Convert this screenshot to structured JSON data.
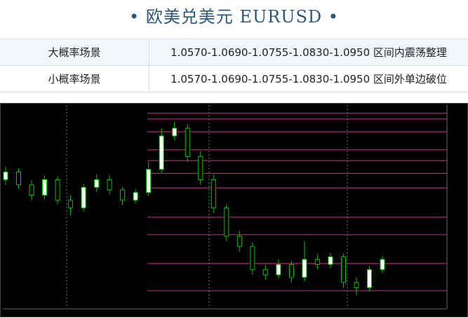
{
  "header": {
    "title": "• 欧美兑美元 EURUSD •"
  },
  "table": {
    "rows": [
      [
        "大概率场景",
        "1.0570-1.0690-1.0755-1.0830-1.0950 区间内震荡整理"
      ],
      [
        "小概率场景",
        "1.0570-1.0690-1.0755-1.0830-1.0950 区间外单边破位"
      ]
    ]
  },
  "chart_data": {
    "type": "candlestick",
    "open": [
      1.089,
      1.0905,
      1.088,
      1.086,
      1.089,
      1.085,
      1.0835,
      1.0875,
      1.089,
      1.087,
      1.085,
      1.0865,
      1.091,
      1.0975,
      1.099,
      1.0935,
      1.089,
      1.0835,
      1.078,
      1.076,
      1.0715,
      1.0705,
      1.0725,
      1.07,
      1.0735,
      1.0725,
      1.074,
      1.069,
      1.068,
      1.0715
    ],
    "high": [
      1.0915,
      1.0912,
      1.0888,
      1.0898,
      1.0896,
      1.086,
      1.0882,
      1.09,
      1.0898,
      1.0876,
      1.0872,
      1.0925,
      1.099,
      1.1003,
      1.0998,
      1.0945,
      1.09,
      1.0842,
      1.079,
      1.0768,
      1.0725,
      1.0735,
      1.0732,
      1.077,
      1.0745,
      1.0748,
      1.0746,
      1.07,
      1.0722,
      1.0742
    ],
    "low": [
      1.088,
      1.0872,
      1.085,
      1.0852,
      1.0842,
      1.082,
      1.0828,
      1.0866,
      1.0862,
      1.084,
      1.0844,
      1.0858,
      1.0902,
      1.0966,
      1.0925,
      1.088,
      1.0825,
      1.077,
      1.075,
      1.0705,
      1.0695,
      1.0698,
      1.069,
      1.0692,
      1.0715,
      1.0718,
      1.068,
      1.0665,
      1.0672,
      1.0708
    ],
    "close": [
      1.0905,
      1.088,
      1.086,
      1.089,
      1.085,
      1.0835,
      1.0875,
      1.089,
      1.087,
      1.085,
      1.0865,
      1.091,
      1.0975,
      1.099,
      1.0935,
      1.089,
      1.0835,
      1.078,
      1.076,
      1.0715,
      1.0705,
      1.0725,
      1.07,
      1.0735,
      1.0725,
      1.074,
      1.069,
      1.068,
      1.0715,
      1.0735
    ],
    "levels": [
      1.1019,
      1.1008,
      1.0983,
      1.0948,
      1.0927,
      1.0902,
      1.0874,
      1.0817,
      1.0783,
      1.0727,
      1.0674
    ],
    "ylim": [
      1.064,
      1.1035
    ],
    "background": "#000000",
    "up_color": "#ffffff",
    "down_color": "#000000",
    "wick_color": "#00c000",
    "level_color": "#c8328c"
  }
}
